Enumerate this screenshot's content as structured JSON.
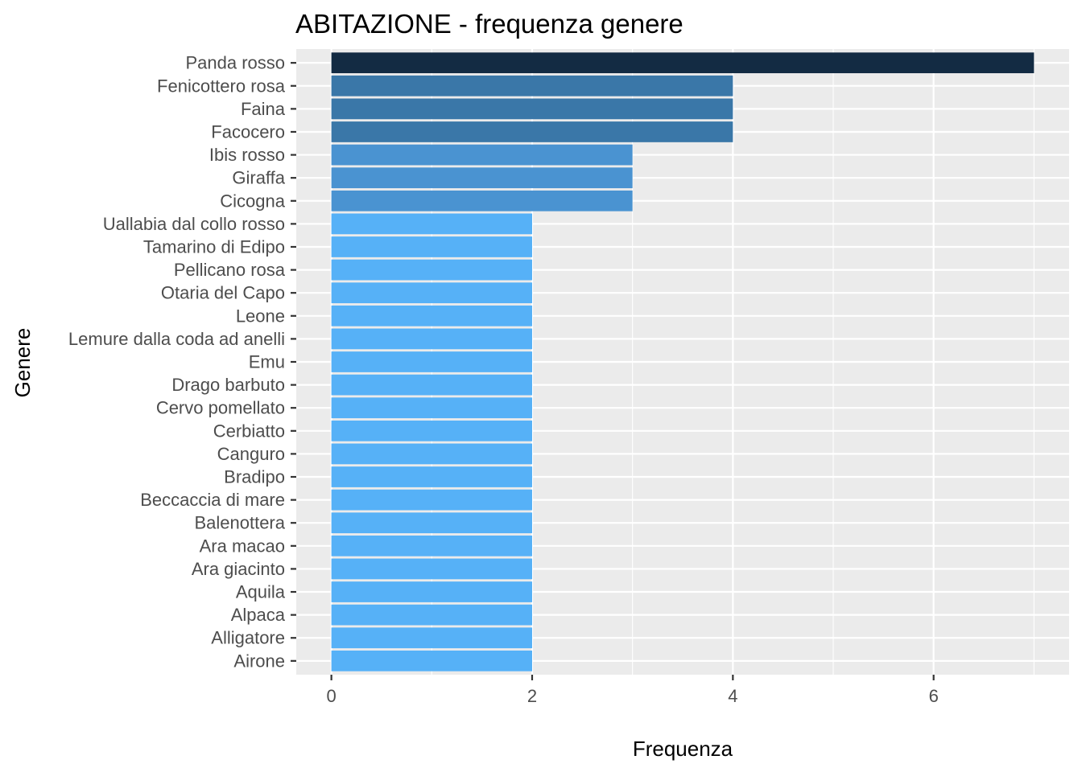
{
  "chart_data": {
    "type": "bar",
    "orientation": "horizontal",
    "title": "ABITAZIONE - frequenza genere",
    "xlabel": "Frequenza",
    "ylabel": "Genere",
    "xlim": [
      -0.35,
      7.35
    ],
    "x_ticks": [
      0,
      2,
      4,
      6
    ],
    "grid": true,
    "legend": "none",
    "categories": [
      "Panda rosso",
      "Fenicottero rosa",
      "Faina",
      "Facocero",
      "Ibis rosso",
      "Giraffa",
      "Cicogna",
      "Uallabia dal collo rosso",
      "Tamarino di Edipo",
      "Pellicano rosa",
      "Otaria del Capo",
      "Leone",
      "Lemure dalla coda ad anelli",
      "Emu",
      "Drago barbuto",
      "Cervo pomellato",
      "Cerbiatto",
      "Canguro",
      "Bradipo",
      "Beccaccia di mare",
      "Balenottera",
      "Ara macao",
      "Ara giacinto",
      "Aquila",
      "Alpaca",
      "Alligatore",
      "Airone"
    ],
    "values": [
      7,
      4,
      4,
      4,
      3,
      3,
      3,
      2,
      2,
      2,
      2,
      2,
      2,
      2,
      2,
      2,
      2,
      2,
      2,
      2,
      2,
      2,
      2,
      2,
      2,
      2,
      2
    ],
    "colors": {
      "7": "#132b43",
      "4": "#3a77a8",
      "3": "#4a93d1",
      "2": "#56b1f7"
    },
    "panel_background": "#ebebeb",
    "grid_color": "#ffffff"
  }
}
